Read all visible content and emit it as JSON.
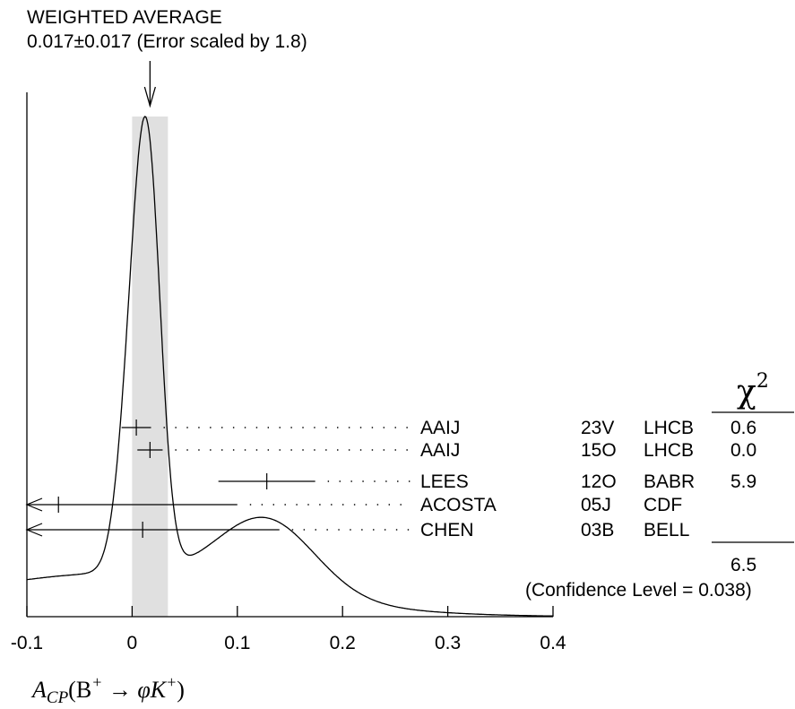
{
  "chart_data": {
    "type": "ideogram",
    "title": "WEIGHTED AVERAGE",
    "subtitle": "0.017±0.017 (Error scaled by 1.8)",
    "weighted_average": {
      "value": 0.017,
      "error": 0.017
    },
    "xlim": [
      -0.1,
      0.4
    ],
    "x_ticks": [
      -0.1,
      0,
      0.1,
      0.2,
      0.3,
      0.4
    ],
    "x_tick_labels": [
      "-0.1",
      "0",
      "0.1",
      "0.2",
      "0.3",
      "0.4"
    ],
    "xlabel": {
      "symbol": "A",
      "sub": "CP",
      "body": "(B",
      "sup1": "+",
      "arrow": " → ",
      "phi": "φK",
      "sup2": "+",
      "close": ")"
    },
    "chi2_header": "χ",
    "chi2_header_sup": "2",
    "measurements": [
      {
        "author": "AAIJ",
        "ref": "23V",
        "experiment": "LHCB",
        "value": 0.004,
        "error": 0.014,
        "chi2": "0.6",
        "left_off_scale": false
      },
      {
        "author": "AAIJ",
        "ref": "15O",
        "experiment": "LHCB",
        "value": 0.017,
        "error": 0.012,
        "chi2": "0.0",
        "left_off_scale": false
      },
      {
        "author": "LEES",
        "ref": "12O",
        "experiment": "BABR",
        "value": 0.128,
        "error": 0.046,
        "chi2": "5.9",
        "left_off_scale": false
      },
      {
        "author": "ACOSTA",
        "ref": "05J",
        "experiment": "CDF",
        "value": -0.07,
        "error": 0.17,
        "chi2": "",
        "left_off_scale": true
      },
      {
        "author": "CHEN",
        "ref": "03B",
        "experiment": "BELL",
        "value": 0.01,
        "error": 0.13,
        "chi2": "",
        "left_off_scale": true
      }
    ],
    "chi2_total": "6.5",
    "confidence_level_text": "(Confidence Level = 0.038)"
  }
}
